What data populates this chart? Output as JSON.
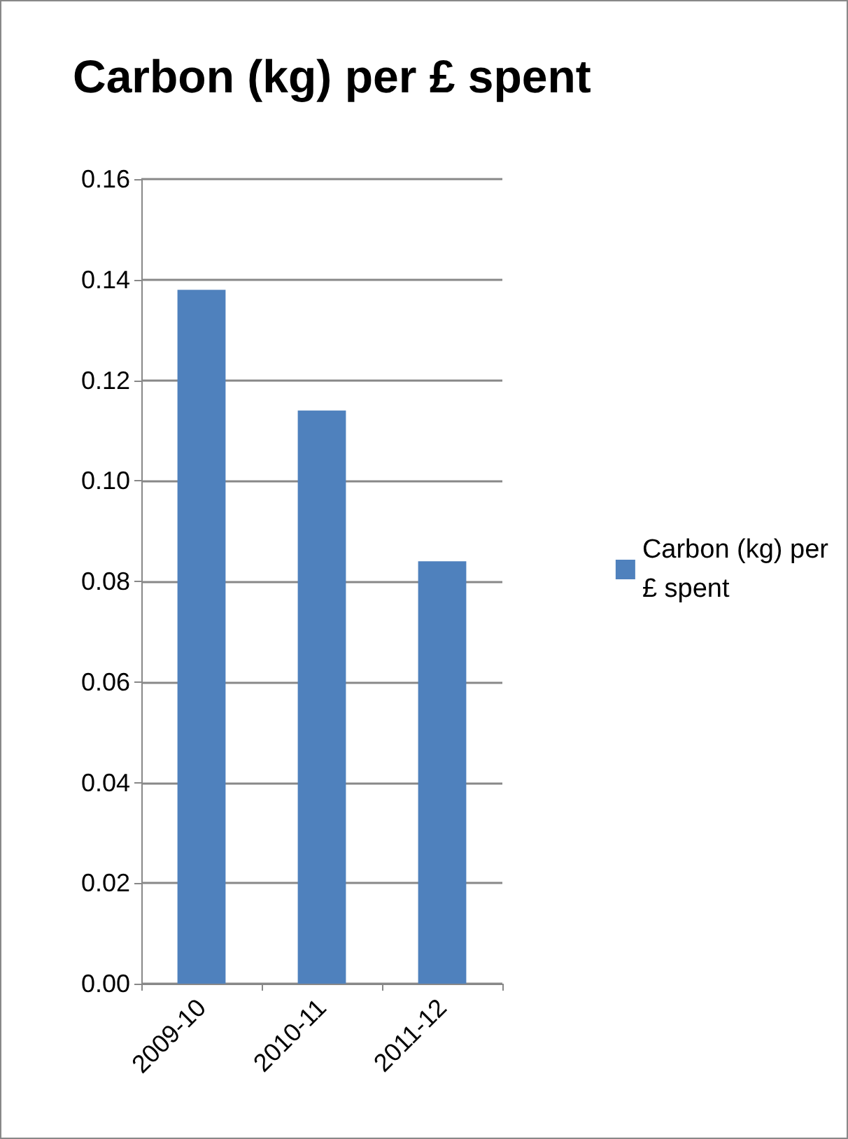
{
  "chart_data": {
    "type": "bar",
    "title": "Carbon (kg) per £ spent",
    "categories": [
      "2009-10",
      "2010-11",
      "2011-12"
    ],
    "series": [
      {
        "name": "Carbon (kg) per\n£ spent",
        "color": "#4f81bd",
        "values": [
          0.138,
          0.114,
          0.084
        ]
      }
    ],
    "ylim": [
      0,
      0.16
    ],
    "yticks": [
      {
        "value": 0,
        "label": "0.00"
      },
      {
        "value": 0.02,
        "label": "0.02"
      },
      {
        "value": 0.04,
        "label": "0.04"
      },
      {
        "value": 0.06,
        "label": "0.06"
      },
      {
        "value": 0.08,
        "label": "0.08"
      },
      {
        "value": 0.1,
        "label": "0.10"
      },
      {
        "value": 0.12,
        "label": "0.12"
      },
      {
        "value": 0.14,
        "label": "0.14"
      },
      {
        "value": 0.16,
        "label": "0.16"
      }
    ],
    "grid": "y",
    "legend": "right"
  }
}
